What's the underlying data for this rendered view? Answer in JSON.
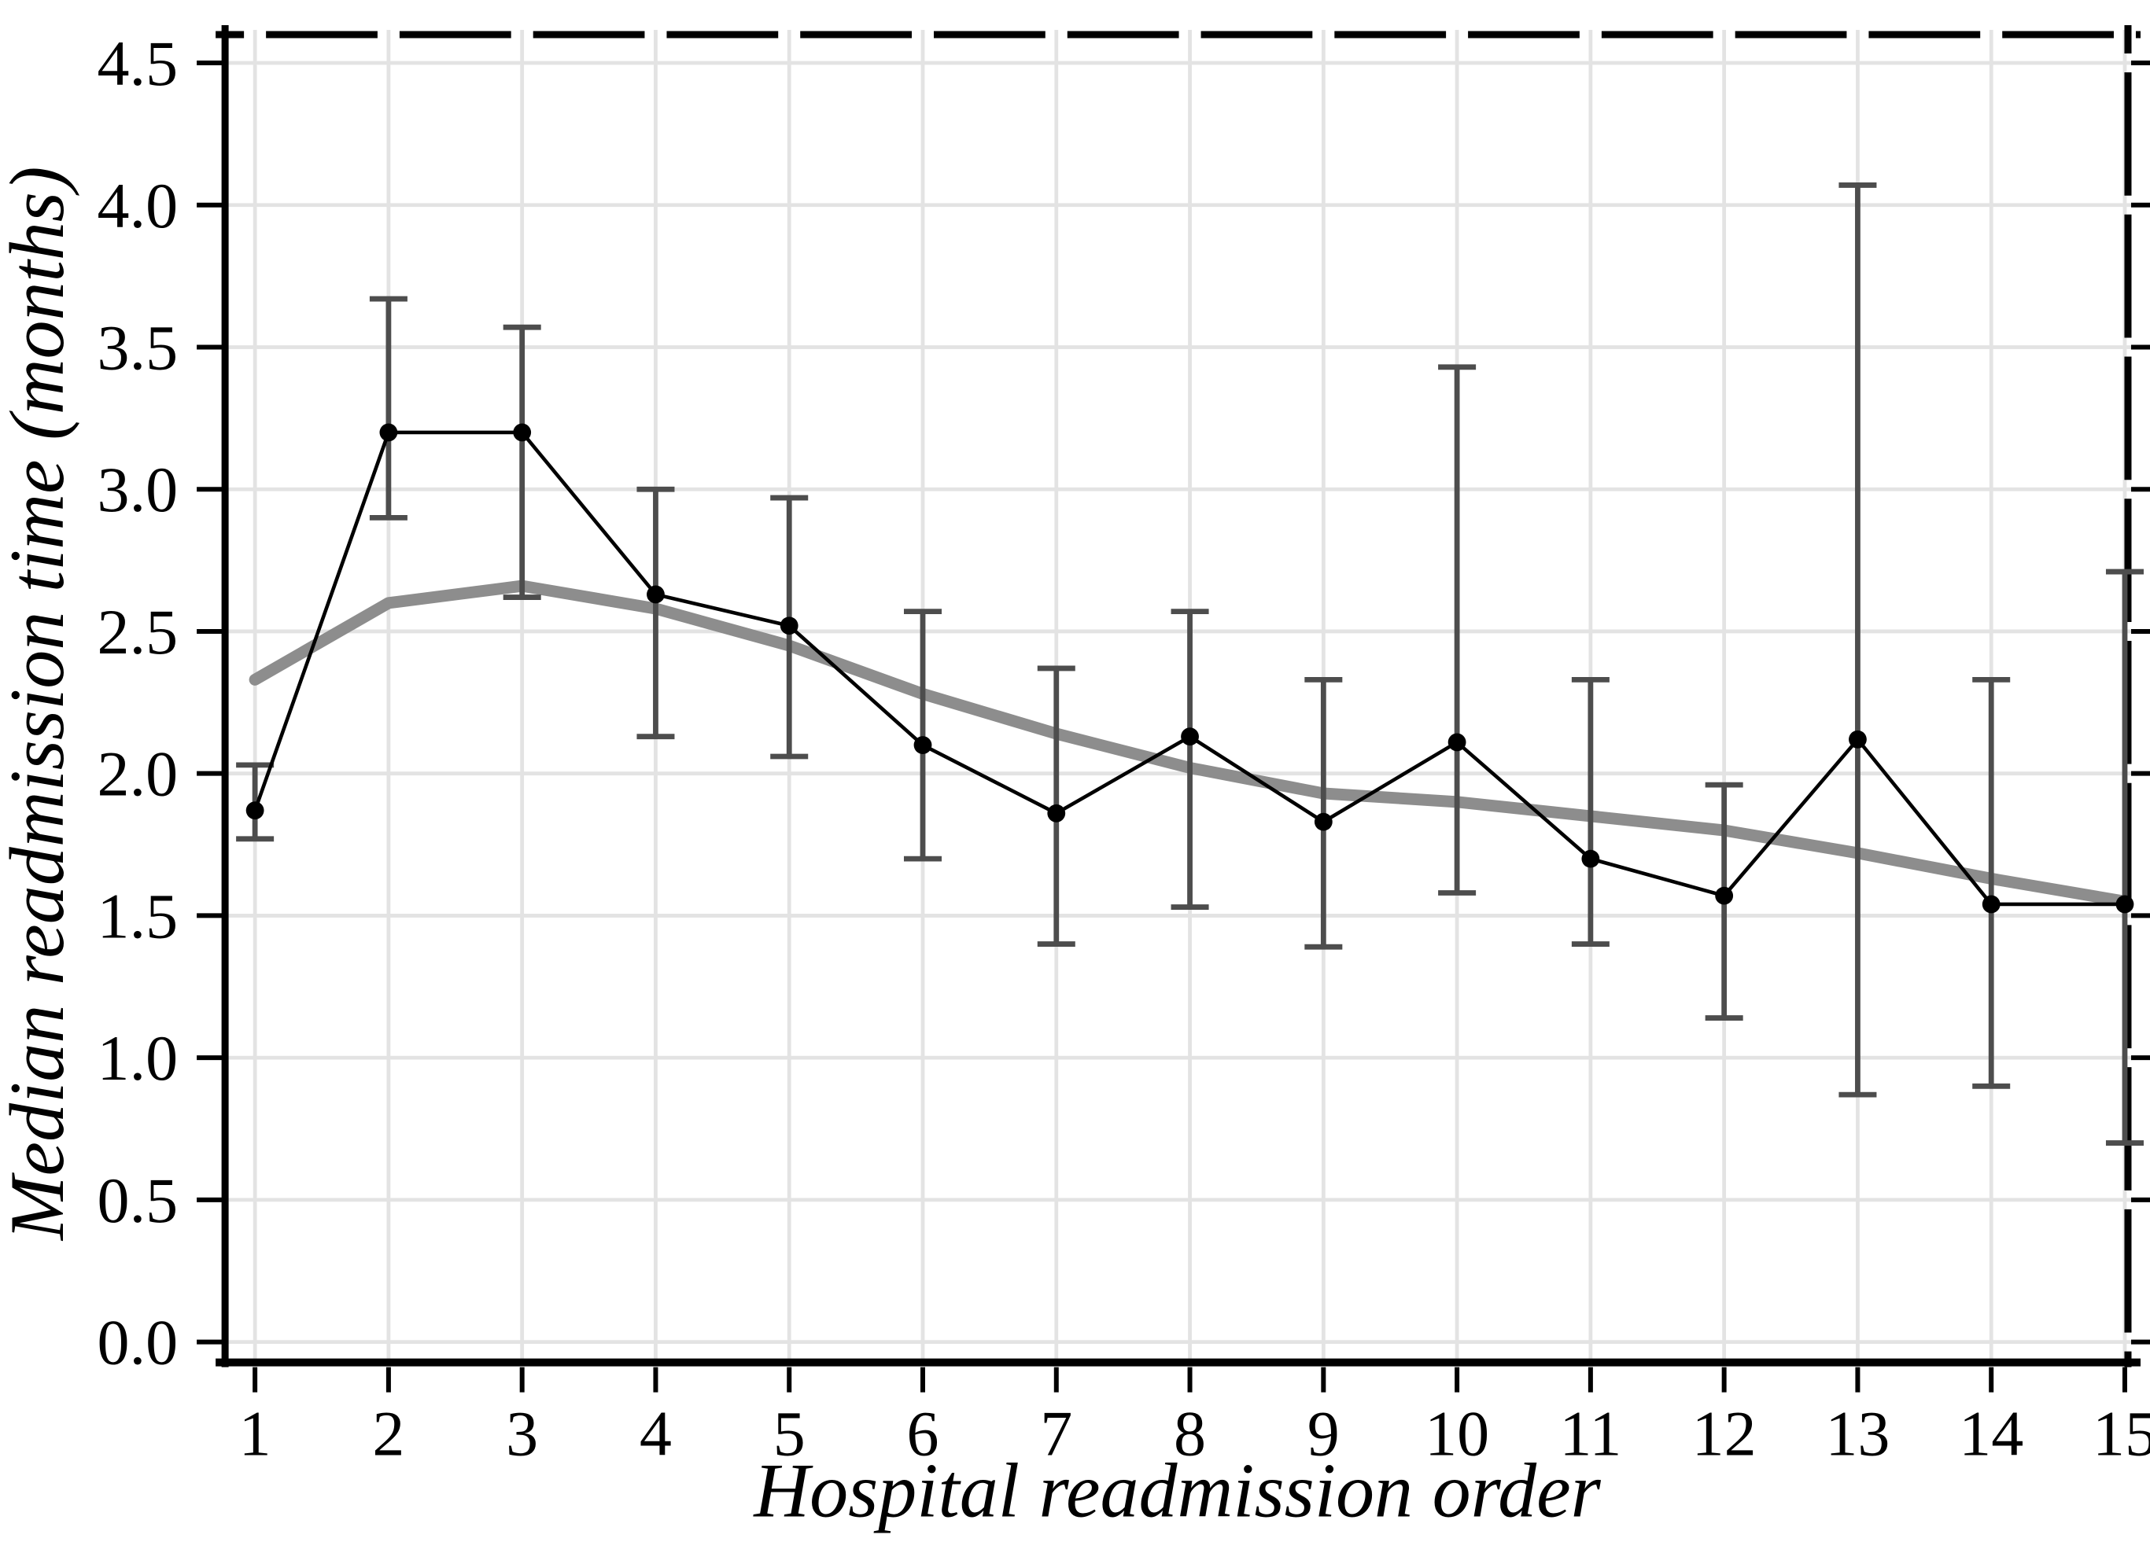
{
  "figure": {
    "xlabel": "Hospital readmission order",
    "ylabel": "Median readmission time (months)"
  },
  "chart_data": {
    "type": "line",
    "title": "",
    "xlabel": "Hospital readmission order",
    "ylabel": "Median readmission time (months)",
    "x": [
      1,
      2,
      3,
      4,
      5,
      6,
      7,
      8,
      9,
      10,
      11,
      12,
      13,
      14,
      15
    ],
    "xtick_labels": [
      "1",
      "2",
      "3",
      "4",
      "5",
      "6",
      "7",
      "8",
      "9",
      "10",
      "11",
      "12",
      "13",
      "14",
      "15"
    ],
    "ytick_values": [
      0.0,
      0.5,
      1.0,
      1.5,
      2.0,
      2.5,
      3.0,
      3.5,
      4.0,
      4.5
    ],
    "ytick_labels": [
      "0.0",
      "0.5",
      "1.0",
      "1.5",
      "2.0",
      "2.5",
      "3.0",
      "3.5",
      "4.0",
      "4.5"
    ],
    "ylim": [
      0.0,
      4.5
    ],
    "grid": true,
    "legend": false,
    "series": [
      {
        "name": "median-readmission-time",
        "style": "line-with-markers",
        "color": "#000000",
        "values": [
          1.87,
          3.2,
          3.2,
          2.63,
          2.52,
          2.1,
          1.86,
          2.13,
          1.83,
          2.11,
          1.7,
          1.57,
          2.12,
          1.54,
          1.54
        ]
      },
      {
        "name": "smoothed-trend",
        "style": "thick-line",
        "color": "#8d8d8d",
        "values": [
          2.33,
          2.6,
          2.66,
          2.58,
          2.45,
          2.28,
          2.14,
          2.02,
          1.93,
          1.9,
          1.85,
          1.8,
          1.72,
          1.63,
          1.55
        ]
      }
    ],
    "error_bars": {
      "color": "#4d4d4d",
      "low": [
        1.77,
        2.9,
        2.62,
        2.13,
        2.06,
        1.7,
        1.4,
        1.53,
        1.39,
        1.58,
        1.4,
        1.14,
        0.87,
        0.9,
        0.7
      ],
      "high": [
        2.03,
        3.67,
        3.57,
        3.0,
        2.97,
        2.57,
        2.37,
        2.57,
        2.33,
        3.43,
        2.33,
        1.96,
        4.07,
        2.33,
        2.71
      ]
    },
    "colors": {
      "grid": "#e3e3e3",
      "spine": "#000000",
      "background": "#ffffff"
    }
  }
}
